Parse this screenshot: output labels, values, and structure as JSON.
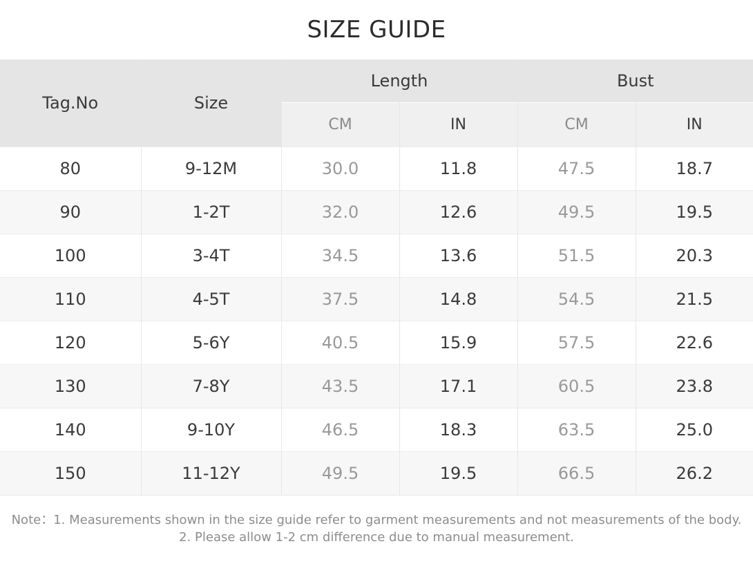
{
  "title": "SIZE GUIDE",
  "headers": {
    "tag_no": "Tag.No",
    "size": "Size",
    "length": "Length",
    "bust": "Bust",
    "cm": "CM",
    "in": "IN"
  },
  "rows": [
    {
      "tag": "80",
      "size": "9-12M",
      "length_cm": "30.0",
      "length_in": "11.8",
      "bust_cm": "47.5",
      "bust_in": "18.7"
    },
    {
      "tag": "90",
      "size": "1-2T",
      "length_cm": "32.0",
      "length_in": "12.6",
      "bust_cm": "49.5",
      "bust_in": "19.5"
    },
    {
      "tag": "100",
      "size": "3-4T",
      "length_cm": "34.5",
      "length_in": "13.6",
      "bust_cm": "51.5",
      "bust_in": "20.3"
    },
    {
      "tag": "110",
      "size": "4-5T",
      "length_cm": "37.5",
      "length_in": "14.8",
      "bust_cm": "54.5",
      "bust_in": "21.5"
    },
    {
      "tag": "120",
      "size": "5-6Y",
      "length_cm": "40.5",
      "length_in": "15.9",
      "bust_cm": "57.5",
      "bust_in": "22.6"
    },
    {
      "tag": "130",
      "size": "7-8Y",
      "length_cm": "43.5",
      "length_in": "17.1",
      "bust_cm": "60.5",
      "bust_in": "23.8"
    },
    {
      "tag": "140",
      "size": "9-10Y",
      "length_cm": "46.5",
      "length_in": "18.3",
      "bust_cm": "63.5",
      "bust_in": "25.0"
    },
    {
      "tag": "150",
      "size": "11-12Y",
      "length_cm": "49.5",
      "length_in": "19.5",
      "bust_cm": "66.5",
      "bust_in": "26.2"
    }
  ],
  "notes": {
    "line1": "Note：1. Measurements shown in the size guide refer to garment measurements and not measurements of the body.",
    "line2": "2. Please allow 1-2 cm difference due to manual measurement."
  }
}
